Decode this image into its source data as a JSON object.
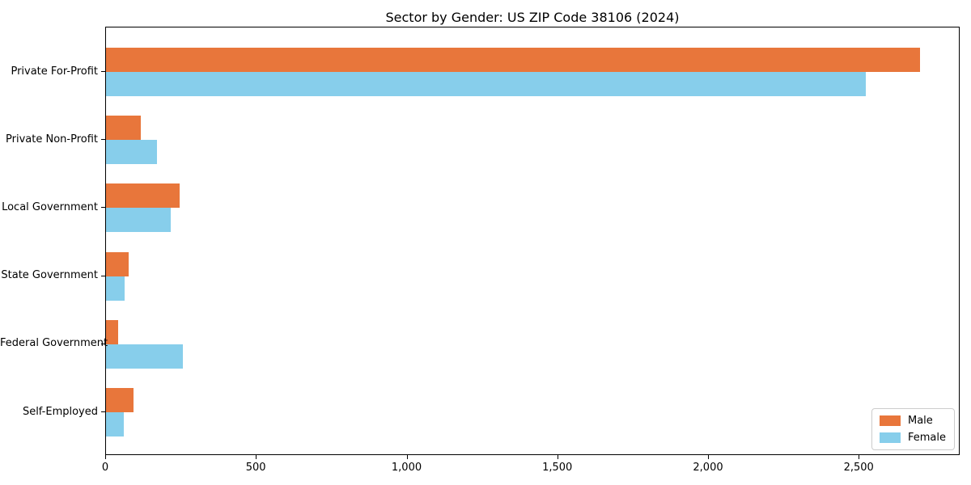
{
  "chart_data": {
    "type": "bar",
    "orientation": "horizontal",
    "title": "Sector by Gender: US ZIP Code 38106 (2024)",
    "categories": [
      "Private For-Profit",
      "Private Non-Profit",
      "Local Government",
      "State Government",
      "Federal Government",
      "Self-Employed"
    ],
    "series": [
      {
        "name": "Male",
        "color": "#E8763B",
        "values": [
          2700,
          115,
          245,
          75,
          40,
          90
        ]
      },
      {
        "name": "Female",
        "color": "#87CEEB",
        "values": [
          2520,
          170,
          215,
          62,
          255,
          60
        ]
      }
    ],
    "xlabel": "",
    "ylabel": "",
    "xlim": [
      0,
      2835
    ],
    "xticks": [
      0,
      500,
      1000,
      1500,
      2000,
      2500
    ],
    "xtick_labels": [
      "0",
      "500",
      "1,000",
      "1,500",
      "2,000",
      "2,500"
    ],
    "grid": false,
    "legend_position": "lower right",
    "colors": {
      "axis": "#000000",
      "text": "#000000",
      "legend_border": "#cccccc",
      "background": "#ffffff"
    }
  }
}
